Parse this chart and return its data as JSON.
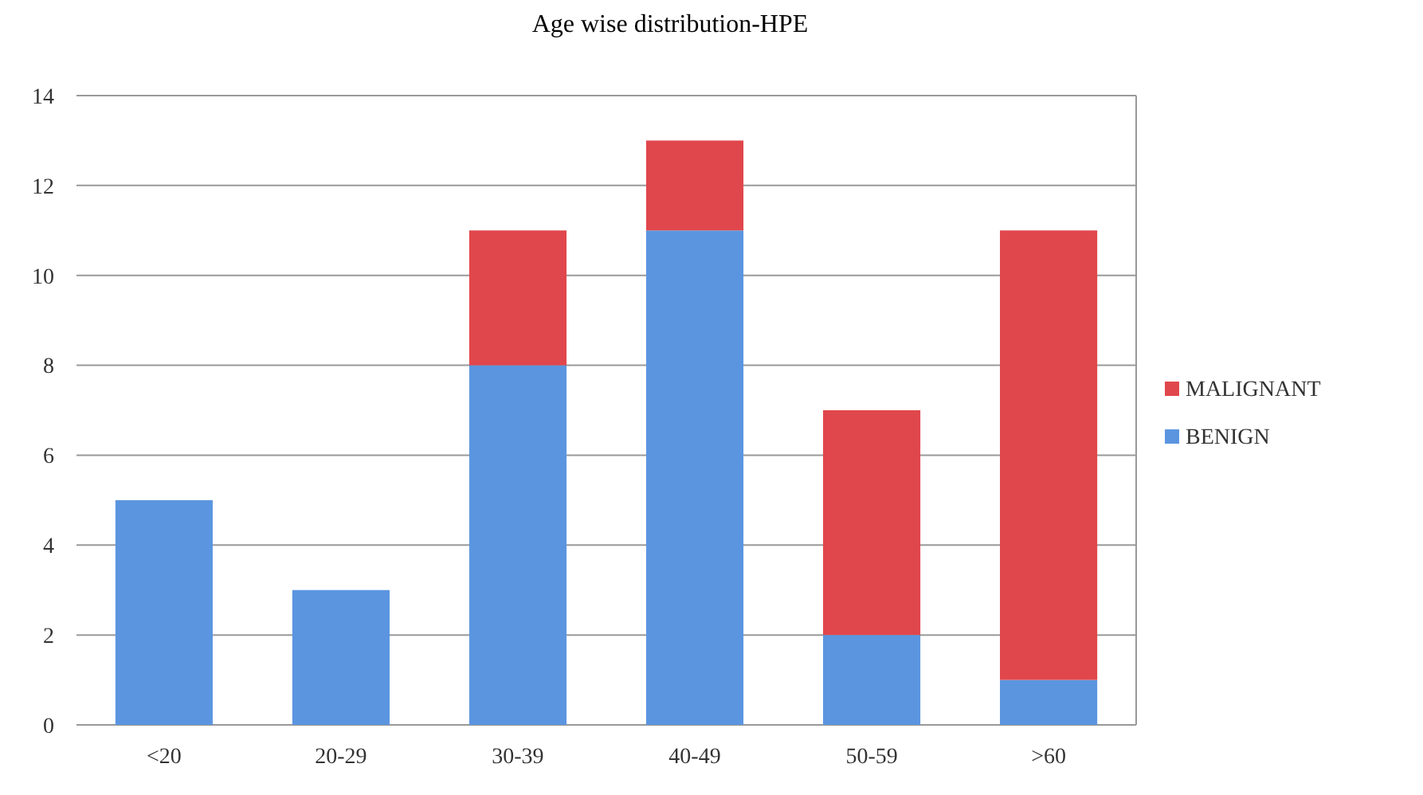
{
  "chart_data": {
    "type": "bar",
    "title": "Age wise distribution-HPE",
    "categories": [
      "<20",
      "20-29",
      "30-39",
      "40-49",
      "50-59",
      ">60"
    ],
    "stacked": true,
    "series": [
      {
        "name": "BENIGN",
        "color": "#5b95e0",
        "values": [
          5,
          3,
          8,
          11,
          2,
          1
        ]
      },
      {
        "name": "MALIGNANT",
        "color": "#e0474c",
        "values": [
          0,
          0,
          3,
          2,
          5,
          10
        ]
      }
    ],
    "ylim": [
      0,
      14
    ],
    "yticks": [
      0,
      2,
      4,
      6,
      8,
      10,
      12,
      14
    ],
    "grid": "y",
    "legend": "right"
  }
}
